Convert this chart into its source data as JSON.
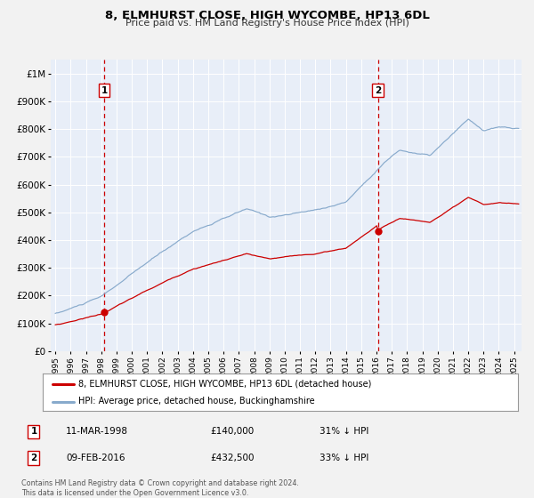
{
  "title": "8, ELMHURST CLOSE, HIGH WYCOMBE, HP13 6DL",
  "subtitle": "Price paid vs. HM Land Registry's House Price Index (HPI)",
  "bg_color": "#e8eef8",
  "fig_bg_color": "#f2f2f2",
  "grid_color": "#ffffff",
  "sale1_date_num": 1998.19,
  "sale1_price": 140000,
  "sale2_date_num": 2016.1,
  "sale2_price": 432500,
  "vline1_x": 1998.19,
  "vline2_x": 2016.1,
  "xmin": 1994.7,
  "xmax": 2025.5,
  "ymin": 0,
  "ymax": 1050000,
  "yticks": [
    0,
    100000,
    200000,
    300000,
    400000,
    500000,
    600000,
    700000,
    800000,
    900000,
    1000000
  ],
  "ytick_labels": [
    "£0",
    "£100K",
    "£200K",
    "£300K",
    "£400K",
    "£500K",
    "£600K",
    "£700K",
    "£800K",
    "£900K",
    "£1M"
  ],
  "xticks": [
    1995,
    1996,
    1997,
    1998,
    1999,
    2000,
    2001,
    2002,
    2003,
    2004,
    2005,
    2006,
    2007,
    2008,
    2009,
    2010,
    2011,
    2012,
    2013,
    2014,
    2015,
    2016,
    2017,
    2018,
    2019,
    2020,
    2021,
    2022,
    2023,
    2024,
    2025
  ],
  "red_line_color": "#cc0000",
  "blue_line_color": "#88aacc",
  "marker_color": "#cc0000",
  "vline_color": "#cc0000",
  "legend_label_red": "8, ELMHURST CLOSE, HIGH WYCOMBE, HP13 6DL (detached house)",
  "legend_label_blue": "HPI: Average price, detached house, Buckinghamshire",
  "table_row1": [
    "1",
    "11-MAR-1998",
    "£140,000",
    "31% ↓ HPI"
  ],
  "table_row2": [
    "2",
    "09-FEB-2016",
    "£432,500",
    "33% ↓ HPI"
  ],
  "footer_text": "Contains HM Land Registry data © Crown copyright and database right 2024.\nThis data is licensed under the Open Government Licence v3.0."
}
